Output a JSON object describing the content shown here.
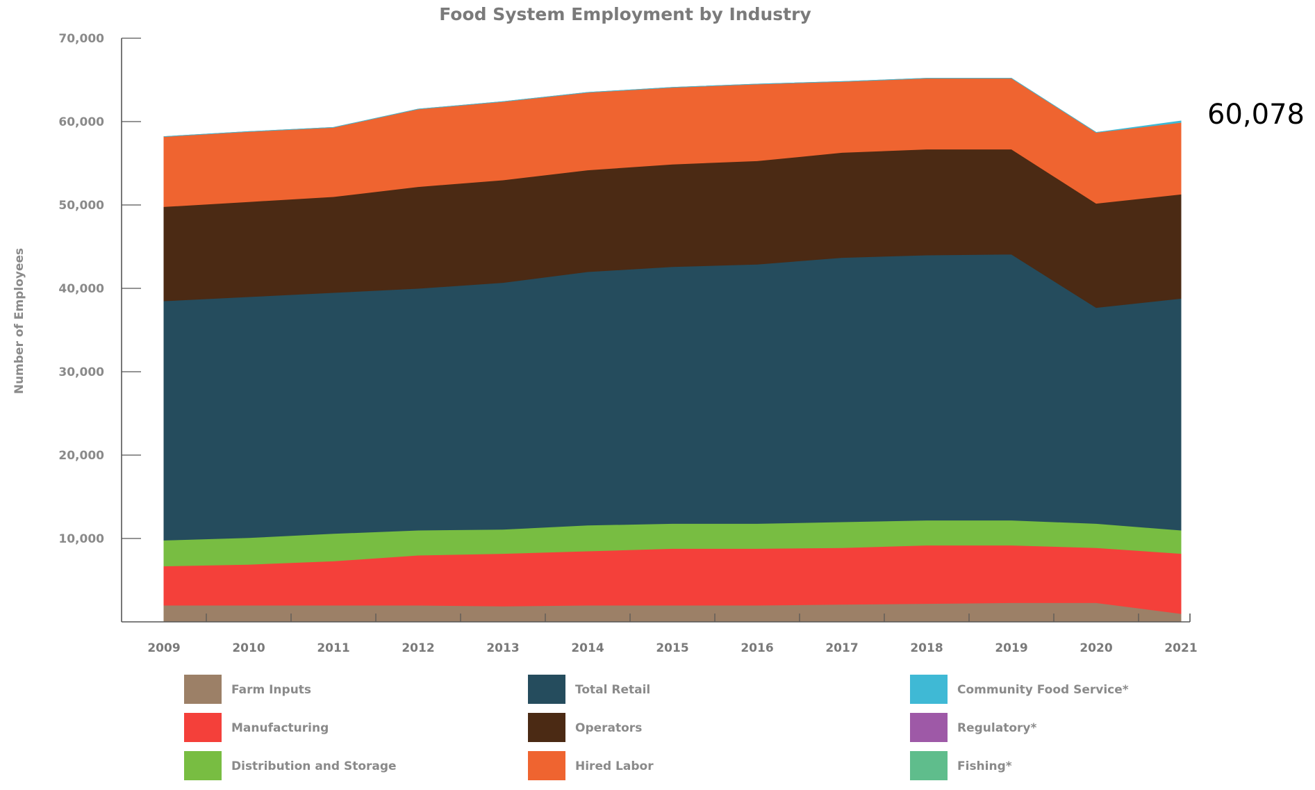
{
  "chart_data": {
    "type": "area",
    "stacked": true,
    "title": "Food System Employment by Industry",
    "ylabel": "Number of Employees",
    "xlabel": "",
    "ylim": [
      0,
      70000
    ],
    "yticks": [
      10000,
      20000,
      30000,
      40000,
      50000,
      60000,
      70000
    ],
    "ytick_labels": [
      "10,000",
      "20,000",
      "30,000",
      "40,000",
      "50,000",
      "60,000",
      "70,000"
    ],
    "x": [
      "2009",
      "2010",
      "2011",
      "2012",
      "2013",
      "2014",
      "2015",
      "2016",
      "2017",
      "2018",
      "2019",
      "2020",
      "2021"
    ],
    "annotation": "60,078",
    "legend_position": "bottom",
    "series": [
      {
        "name": "Farm Inputs",
        "color": "#9c8067",
        "values": [
          2000,
          2000,
          2000,
          2000,
          1900,
          2000,
          2000,
          2000,
          2100,
          2200,
          2300,
          2300,
          1000
        ]
      },
      {
        "name": "Manufacturing",
        "color": "#f4403a",
        "values": [
          4700,
          4900,
          5300,
          6000,
          6300,
          6500,
          6800,
          6800,
          6800,
          7000,
          6900,
          6600,
          7200
        ]
      },
      {
        "name": "Distribution and Storage",
        "color": "#78bd42",
        "values": [
          3100,
          3200,
          3300,
          3000,
          2900,
          3100,
          3000,
          3000,
          3100,
          3000,
          3000,
          2900,
          2800
        ]
      },
      {
        "name": "Total Retail",
        "color": "#254c5d",
        "values": [
          28700,
          28900,
          28900,
          29000,
          29600,
          30400,
          30800,
          31100,
          31700,
          31800,
          31900,
          25900,
          27800
        ]
      },
      {
        "name": "Operators",
        "color": "#4b2a14",
        "values": [
          11300,
          11400,
          11500,
          12200,
          12300,
          12200,
          12300,
          12400,
          12600,
          12700,
          12600,
          12500,
          12500
        ]
      },
      {
        "name": "Hired Labor",
        "color": "#ef6430",
        "values": [
          8400,
          8400,
          8300,
          9300,
          9400,
          9300,
          9200,
          9200,
          8500,
          8500,
          8500,
          8500,
          8600
        ]
      },
      {
        "name": "Community Food Service*",
        "color": "#3fb9d5",
        "values": [
          0,
          0,
          0,
          0,
          0,
          0,
          0,
          0,
          0,
          0,
          0,
          0,
          178
        ]
      },
      {
        "name": "Regulatory*",
        "color": "#9e59a7",
        "values": [
          0,
          0,
          0,
          0,
          0,
          0,
          0,
          0,
          0,
          0,
          0,
          0,
          0
        ]
      },
      {
        "name": "Fishing*",
        "color": "#5fbd8c",
        "values": [
          0,
          0,
          0,
          0,
          0,
          0,
          0,
          0,
          0,
          0,
          0,
          0,
          0
        ]
      }
    ]
  }
}
